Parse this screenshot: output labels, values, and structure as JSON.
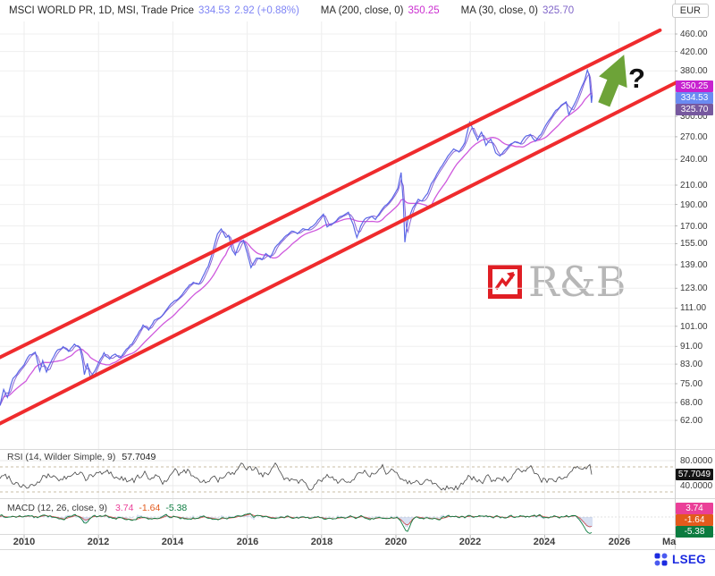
{
  "header": {
    "instrument": "MSCI WORLD PR, 1D, MSI, Trade Price",
    "last_price": "334.53",
    "change": "2.92 (+0.88%)",
    "ma200_label": "MA (200, close, 0)",
    "ma200_value": "350.25",
    "ma30_label": "MA (30, close, 0)",
    "ma30_value": "325.70",
    "currency": "EUR"
  },
  "price_axis": {
    "badges": [
      {
        "name": "ma200",
        "text": "350.25",
        "value": 350.25,
        "bg": "#c722cf"
      },
      {
        "name": "last-price",
        "text": "334.53",
        "value": 334.53,
        "bg": "#6a8bf2"
      },
      {
        "name": "ma30",
        "text": "325.70",
        "value": 325.7,
        "bg": "#77599f"
      }
    ]
  },
  "x_axis": {
    "labels": [
      "2010",
      "2012",
      "2014",
      "2016",
      "2018",
      "2020",
      "2022",
      "2024",
      "2026",
      "Ma"
    ]
  },
  "rsi": {
    "label": "RSI (14, Wilder Simple, 9)",
    "value": "57.7049",
    "ticks": [
      {
        "text": "80.0000",
        "value": 80
      },
      {
        "text": "40.0000",
        "value": 40
      }
    ],
    "badge_bg": "#141414"
  },
  "macd": {
    "label": "MACD (12, 26, close, 9)",
    "values": [
      {
        "text": "3.74",
        "color": "#ea3f98"
      },
      {
        "text": "-1.64",
        "color": "#e25a1c"
      },
      {
        "text": "-5.38",
        "color": "#0c7c40"
      }
    ]
  },
  "watermark": {
    "text": "R&B"
  },
  "annotation": {
    "question_mark": "?"
  },
  "footer": {
    "brand": "LSEG"
  },
  "chart_data": [
    {
      "id": "price-main",
      "type": "line",
      "title": "MSCI WORLD PR, 1D, MSI, Trade Price",
      "currency": "EUR",
      "scale": "log",
      "x_unit": "decimal_year",
      "xlim": [
        2009.35,
        2027.5
      ],
      "ylim": [
        62,
        460
      ],
      "grid": true,
      "y_ticks": [
        460,
        420,
        380,
        300,
        270,
        240,
        210,
        190,
        170,
        155,
        139,
        123,
        111,
        101,
        91,
        83,
        75,
        68,
        62
      ],
      "x_ticks": [
        2010,
        2012,
        2014,
        2016,
        2018,
        2020,
        2022,
        2024,
        2026
      ],
      "series": [
        {
          "name": "Trade Price",
          "color": "#5a67e6",
          "last": 334.53,
          "change": "2.92 (+0.88%)",
          "points": [
            [
              2009.35,
              67
            ],
            [
              2009.45,
              73
            ],
            [
              2009.55,
              70
            ],
            [
              2009.7,
              77
            ],
            [
              2009.85,
              80
            ],
            [
              2010.0,
              83
            ],
            [
              2010.15,
              87
            ],
            [
              2010.3,
              88
            ],
            [
              2010.42,
              80
            ],
            [
              2010.5,
              84
            ],
            [
              2010.6,
              79
            ],
            [
              2010.75,
              85
            ],
            [
              2010.9,
              89
            ],
            [
              2011.05,
              91
            ],
            [
              2011.2,
              88
            ],
            [
              2011.35,
              92
            ],
            [
              2011.5,
              90
            ],
            [
              2011.58,
              84
            ],
            [
              2011.62,
              79
            ],
            [
              2011.7,
              83
            ],
            [
              2011.78,
              77
            ],
            [
              2011.9,
              80
            ],
            [
              2012.0,
              84
            ],
            [
              2012.15,
              88
            ],
            [
              2012.3,
              85
            ],
            [
              2012.45,
              87
            ],
            [
              2012.6,
              86
            ],
            [
              2012.75,
              90
            ],
            [
              2012.9,
              92
            ],
            [
              2013.05,
              97
            ],
            [
              2013.2,
              102
            ],
            [
              2013.35,
              99
            ],
            [
              2013.5,
              104
            ],
            [
              2013.65,
              106
            ],
            [
              2013.8,
              110
            ],
            [
              2013.95,
              113
            ],
            [
              2014.1,
              116
            ],
            [
              2014.25,
              119
            ],
            [
              2014.4,
              124
            ],
            [
              2014.55,
              127
            ],
            [
              2014.7,
              125
            ],
            [
              2014.8,
              130
            ],
            [
              2014.95,
              138
            ],
            [
              2015.1,
              152
            ],
            [
              2015.2,
              163
            ],
            [
              2015.3,
              167
            ],
            [
              2015.42,
              160
            ],
            [
              2015.5,
              163
            ],
            [
              2015.6,
              150
            ],
            [
              2015.68,
              146
            ],
            [
              2015.8,
              155
            ],
            [
              2015.9,
              158
            ],
            [
              2016.0,
              147
            ],
            [
              2016.1,
              136
            ],
            [
              2016.25,
              145
            ],
            [
              2016.4,
              142
            ],
            [
              2016.5,
              147
            ],
            [
              2016.62,
              144
            ],
            [
              2016.75,
              152
            ],
            [
              2016.9,
              157
            ],
            [
              2017.05,
              162
            ],
            [
              2017.2,
              165
            ],
            [
              2017.35,
              163
            ],
            [
              2017.5,
              167
            ],
            [
              2017.65,
              166
            ],
            [
              2017.8,
              170
            ],
            [
              2017.95,
              177
            ],
            [
              2018.05,
              182
            ],
            [
              2018.15,
              169
            ],
            [
              2018.3,
              173
            ],
            [
              2018.45,
              177
            ],
            [
              2018.6,
              180
            ],
            [
              2018.72,
              182
            ],
            [
              2018.85,
              172
            ],
            [
              2018.95,
              161
            ],
            [
              2019.05,
              170
            ],
            [
              2019.2,
              176
            ],
            [
              2019.35,
              180
            ],
            [
              2019.45,
              177
            ],
            [
              2019.6,
              185
            ],
            [
              2019.75,
              190
            ],
            [
              2019.9,
              197
            ],
            [
              2020.05,
              207
            ],
            [
              2020.14,
              224
            ],
            [
              2020.2,
              190
            ],
            [
              2020.24,
              155
            ],
            [
              2020.32,
              175
            ],
            [
              2020.45,
              188
            ],
            [
              2020.6,
              195
            ],
            [
              2020.7,
              192
            ],
            [
              2020.85,
              200
            ],
            [
              2020.95,
              212
            ],
            [
              2021.1,
              223
            ],
            [
              2021.25,
              233
            ],
            [
              2021.4,
              244
            ],
            [
              2021.55,
              252
            ],
            [
              2021.7,
              249
            ],
            [
              2021.85,
              262
            ],
            [
              2021.98,
              289
            ],
            [
              2022.1,
              275
            ],
            [
              2022.2,
              266
            ],
            [
              2022.3,
              277
            ],
            [
              2022.42,
              258
            ],
            [
              2022.55,
              266
            ],
            [
              2022.68,
              248
            ],
            [
              2022.8,
              244
            ],
            [
              2022.92,
              252
            ],
            [
              2023.05,
              260
            ],
            [
              2023.2,
              264
            ],
            [
              2023.35,
              258
            ],
            [
              2023.5,
              270
            ],
            [
              2023.62,
              274
            ],
            [
              2023.75,
              264
            ],
            [
              2023.9,
              272
            ],
            [
              2024.0,
              284
            ],
            [
              2024.15,
              298
            ],
            [
              2024.3,
              310
            ],
            [
              2024.45,
              320
            ],
            [
              2024.58,
              324
            ],
            [
              2024.65,
              303
            ],
            [
              2024.78,
              318
            ],
            [
              2024.9,
              334
            ],
            [
              2025.0,
              352
            ],
            [
              2025.08,
              366
            ],
            [
              2025.15,
              383
            ],
            [
              2025.2,
              372
            ],
            [
              2025.23,
              345
            ],
            [
              2025.26,
              322
            ],
            [
              2025.28,
              334.53
            ]
          ]
        },
        {
          "name": "MA (200, close, 0)",
          "color": "#cf59dd",
          "last": 350.25
        },
        {
          "name": "MA (30, close, 0)",
          "color": "#8a63d6",
          "last": 325.7
        }
      ],
      "annotations": {
        "channel": {
          "color": "#ef2b2d",
          "upper": [
            [
              2009.35,
              86
            ],
            [
              2027.1,
              469
            ]
          ],
          "lower": [
            [
              2009.35,
              61
            ],
            [
              2027.55,
              358
            ]
          ]
        },
        "arrow": {
          "color": "#6da338",
          "direction": "up-right"
        },
        "question_mark": "?"
      }
    },
    {
      "id": "rsi",
      "type": "line",
      "title": "RSI (14, Wilder Simple, 9)",
      "current": 57.7049,
      "y_ticks": [
        80,
        40
      ],
      "dashed_levels": [
        70,
        30
      ],
      "range_hint": [
        33,
        77
      ]
    },
    {
      "id": "macd",
      "type": "line",
      "title": "MACD (12, 26, close, 9)",
      "values": {
        "macd": 3.74,
        "signal": -1.64,
        "divergence": -5.38
      },
      "spike_years_hint": [
        2011.6,
        2020.25,
        2025.25
      ]
    }
  ]
}
